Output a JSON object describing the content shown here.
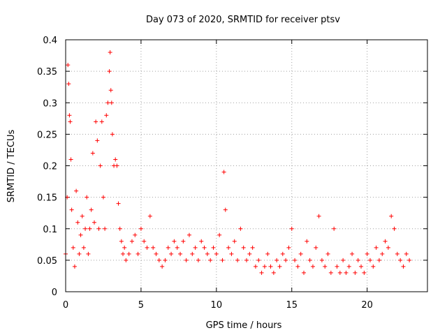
{
  "chart_data": {
    "type": "scatter",
    "title": "Day 073 of 2020, SRMTID for receiver ptsv",
    "xlabel": "GPS time / hours",
    "ylabel": "SRMTID / TECUs",
    "xlim": [
      0,
      24
    ],
    "ylim": [
      0,
      0.4
    ],
    "xticks": [
      0,
      5,
      10,
      15,
      20
    ],
    "xtick_labels": [
      "0",
      "5",
      "10",
      "15",
      "20"
    ],
    "yticks": [
      0,
      0.05,
      0.1,
      0.15,
      0.2,
      0.25,
      0.3,
      0.35,
      0.4
    ],
    "ytick_labels": [
      "0",
      "0.05",
      "0.1",
      "0.15",
      "0.2",
      "0.25",
      "0.3",
      "0.35",
      "0.4"
    ],
    "grid": true,
    "marker": "plus",
    "color": "#ff0000",
    "series": [
      {
        "name": "SRMTID",
        "x": [
          0.0,
          0.1,
          0.15,
          0.2,
          0.25,
          0.3,
          0.35,
          0.4,
          0.5,
          0.6,
          0.7,
          0.8,
          0.9,
          1.0,
          1.1,
          1.2,
          1.3,
          1.4,
          1.5,
          1.6,
          1.7,
          1.8,
          1.9,
          2.0,
          2.1,
          2.2,
          2.3,
          2.4,
          2.5,
          2.6,
          2.7,
          2.8,
          2.9,
          2.95,
          3.0,
          3.05,
          3.1,
          3.2,
          3.3,
          3.4,
          3.5,
          3.6,
          3.7,
          3.8,
          3.9,
          4.0,
          4.2,
          4.4,
          4.6,
          4.8,
          5.0,
          5.2,
          5.4,
          5.6,
          5.8,
          6.0,
          6.2,
          6.4,
          6.6,
          6.8,
          7.0,
          7.2,
          7.4,
          7.6,
          7.8,
          8.0,
          8.2,
          8.4,
          8.6,
          8.8,
          9.0,
          9.2,
          9.4,
          9.6,
          9.8,
          10.0,
          10.2,
          10.4,
          10.5,
          10.6,
          10.8,
          11.0,
          11.2,
          11.4,
          11.6,
          11.8,
          12.0,
          12.2,
          12.4,
          12.6,
          12.8,
          13.0,
          13.2,
          13.4,
          13.6,
          13.8,
          14.0,
          14.2,
          14.4,
          14.6,
          14.8,
          15.0,
          15.2,
          15.4,
          15.6,
          15.8,
          16.0,
          16.2,
          16.4,
          16.6,
          16.8,
          17.0,
          17.2,
          17.4,
          17.6,
          17.8,
          18.0,
          18.2,
          18.4,
          18.6,
          18.8,
          19.0,
          19.2,
          19.4,
          19.6,
          19.8,
          20.0,
          20.2,
          20.4,
          20.6,
          20.8,
          21.0,
          21.2,
          21.4,
          21.6,
          21.8,
          22.0,
          22.2,
          22.4,
          22.6,
          22.8
        ],
        "y": [
          0.06,
          0.15,
          0.36,
          0.33,
          0.28,
          0.27,
          0.21,
          0.13,
          0.07,
          0.04,
          0.16,
          0.11,
          0.06,
          0.09,
          0.12,
          0.07,
          0.1,
          0.15,
          0.06,
          0.1,
          0.13,
          0.22,
          0.11,
          0.27,
          0.24,
          0.1,
          0.2,
          0.27,
          0.15,
          0.1,
          0.28,
          0.3,
          0.35,
          0.38,
          0.32,
          0.3,
          0.25,
          0.2,
          0.21,
          0.2,
          0.14,
          0.1,
          0.08,
          0.06,
          0.07,
          0.05,
          0.06,
          0.08,
          0.09,
          0.06,
          0.1,
          0.08,
          0.07,
          0.12,
          0.07,
          0.06,
          0.05,
          0.04,
          0.05,
          0.07,
          0.06,
          0.08,
          0.07,
          0.06,
          0.08,
          0.05,
          0.09,
          0.06,
          0.07,
          0.05,
          0.08,
          0.07,
          0.06,
          0.05,
          0.07,
          0.06,
          0.09,
          0.05,
          0.19,
          0.13,
          0.07,
          0.06,
          0.08,
          0.05,
          0.1,
          0.07,
          0.05,
          0.06,
          0.07,
          0.04,
          0.05,
          0.03,
          0.04,
          0.06,
          0.04,
          0.03,
          0.05,
          0.04,
          0.06,
          0.05,
          0.07,
          0.1,
          0.05,
          0.04,
          0.06,
          0.03,
          0.08,
          0.05,
          0.04,
          0.07,
          0.12,
          0.05,
          0.04,
          0.06,
          0.03,
          0.1,
          0.04,
          0.03,
          0.05,
          0.03,
          0.04,
          0.06,
          0.03,
          0.05,
          0.04,
          0.03,
          0.06,
          0.05,
          0.04,
          0.07,
          0.05,
          0.06,
          0.08,
          0.07,
          0.12,
          0.1,
          0.06,
          0.05,
          0.04,
          0.06,
          0.05
        ]
      }
    ]
  }
}
